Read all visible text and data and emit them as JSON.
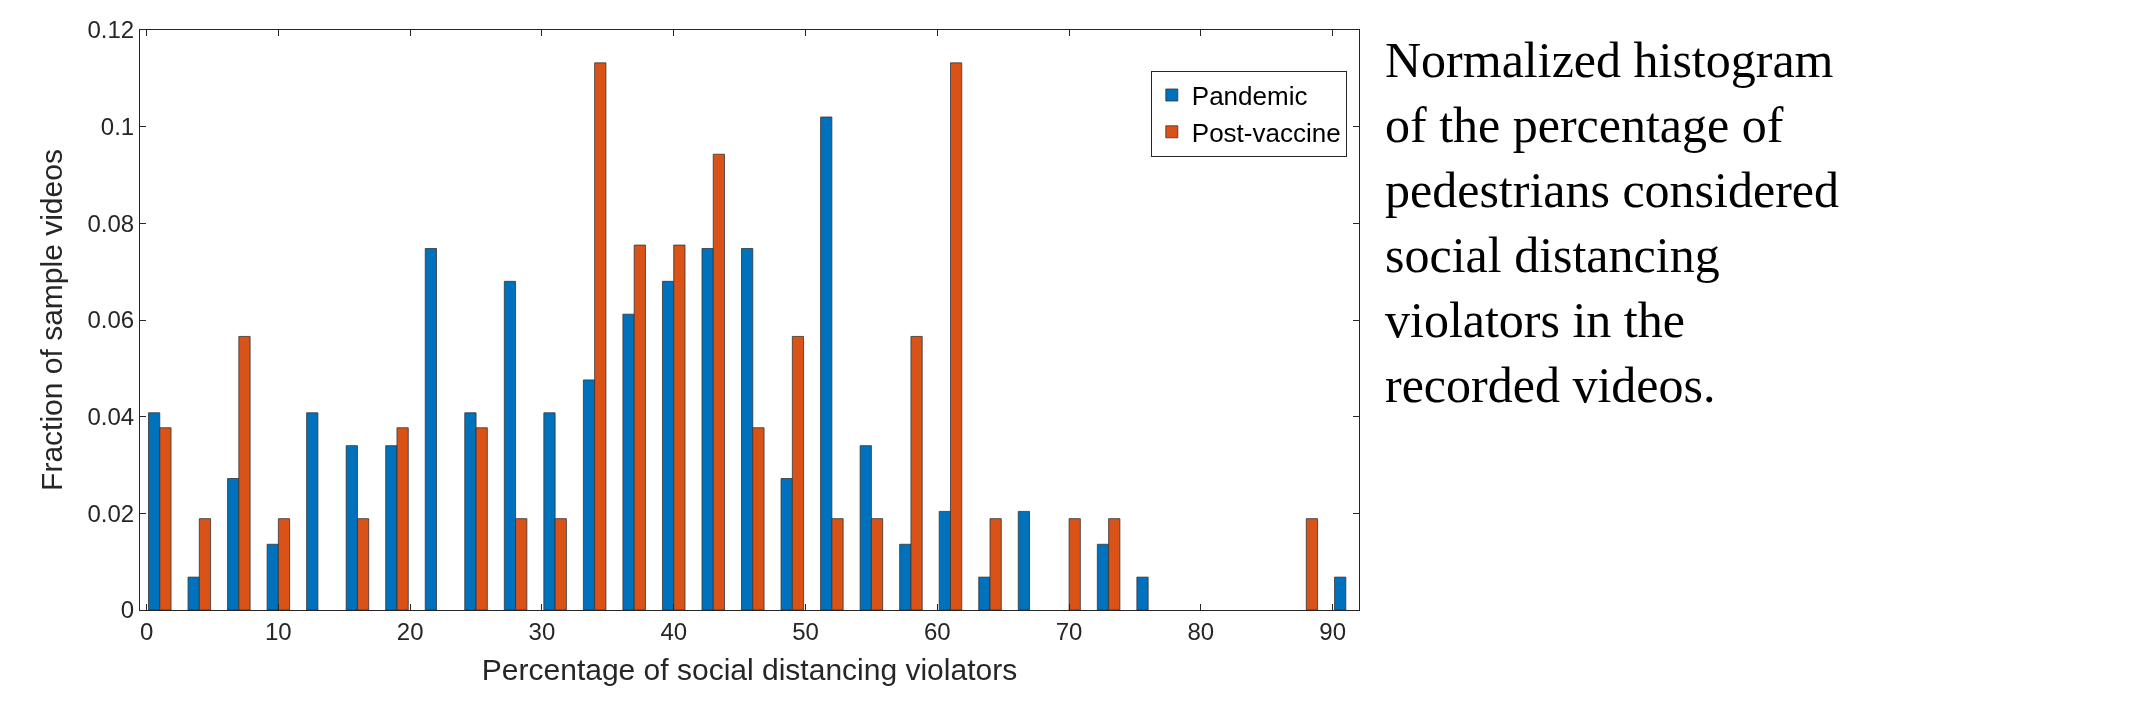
{
  "chart_data": {
    "type": "bar",
    "xlabel": "Percentage of social distancing violators",
    "ylabel": "Fraction of sample videos",
    "x": [
      1,
      4,
      7,
      10,
      13,
      16,
      19,
      22,
      25,
      28,
      31,
      34,
      37,
      40,
      43,
      46,
      49,
      52,
      55,
      58,
      61,
      64,
      67,
      70,
      73,
      76,
      79,
      82,
      85,
      88,
      91
    ],
    "series": [
      {
        "name": "Pandemic",
        "color": "#0072bd",
        "values": [
          0.0408,
          0.0068,
          0.0272,
          0.0136,
          0.0408,
          0.034,
          0.034,
          0.0748,
          0.0408,
          0.068,
          0.0408,
          0.0476,
          0.0612,
          0.068,
          0.0748,
          0.0748,
          0.0272,
          0.102,
          0.034,
          0.0136,
          0.0204,
          0.0068,
          0.0204,
          0,
          0.0136,
          0.0068,
          0,
          0,
          0,
          0,
          0.0068
        ]
      },
      {
        "name": "Post-vaccine",
        "color": "#d95319",
        "values": [
          0.0377,
          0.0189,
          0.0566,
          0.0189,
          0,
          0.0189,
          0.0377,
          0,
          0.0377,
          0.0189,
          0.0189,
          0.1132,
          0.0755,
          0.0755,
          0.0943,
          0.0377,
          0.0566,
          0.0189,
          0.0189,
          0.0566,
          0.1132,
          0.0189,
          0,
          0.0189,
          0.0189,
          0,
          0,
          0,
          0,
          0.0189,
          0
        ]
      }
    ],
    "xlim": [
      -0.5,
      92
    ],
    "xticks": [
      0,
      10,
      20,
      30,
      40,
      50,
      60,
      70,
      80,
      90
    ],
    "ylim": [
      0,
      0.12
    ],
    "yticks": [
      0,
      0.02,
      0.04,
      0.06,
      0.08,
      0.1,
      0.12
    ],
    "legend": "top right",
    "annotations": [
      "Normalized histogram of the percentage of pedestrians considered social distancing violators in the recorded videos."
    ]
  }
}
